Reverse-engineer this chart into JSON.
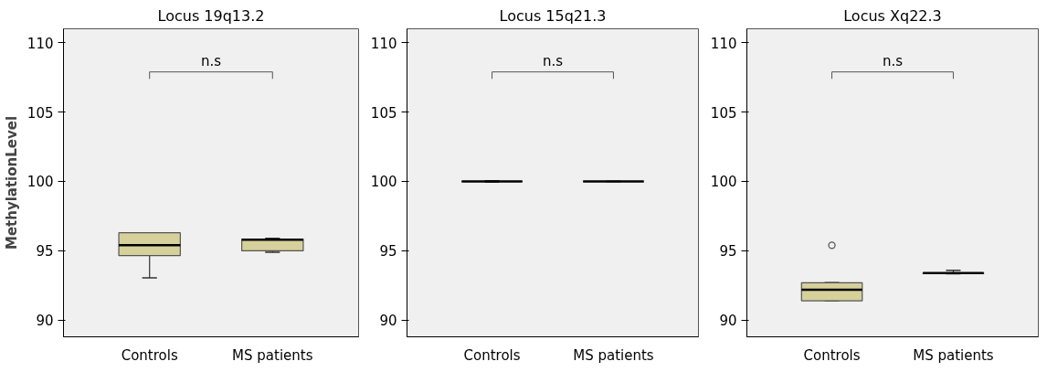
{
  "chart_data": [
    {
      "type": "box",
      "title": "Locus 19q13.2",
      "ylabel": "MethylationLevel",
      "categories": [
        "Controls",
        "MS patients"
      ],
      "color": "#d6d09a",
      "ylim": [
        88.8,
        111
      ],
      "yticks": [
        90,
        95,
        100,
        105,
        110
      ],
      "grid": false,
      "annotations": [
        "n.s"
      ],
      "boxes": [
        {
          "low": 93.05,
          "q1": 94.65,
          "median": 95.4,
          "q3": 96.3,
          "high": 96.3
        },
        {
          "low": 94.9,
          "q1": 95.0,
          "median": 95.8,
          "q3": 95.85,
          "high": 95.9
        }
      ]
    },
    {
      "type": "box",
      "title": "Locus 15q21.3",
      "categories": [
        "Controls",
        "MS patients"
      ],
      "ylim": [
        88.8,
        111
      ],
      "yticks": [
        90,
        95,
        100,
        105,
        110
      ],
      "grid": false,
      "annotations": [
        "n.s"
      ],
      "boxes": [
        {
          "low": 99.95,
          "q1": 100,
          "median": 100,
          "q3": 100,
          "high": 100.05
        },
        {
          "low": 100,
          "q1": 100,
          "median": 100,
          "q3": 100,
          "high": 100
        }
      ]
    },
    {
      "type": "box",
      "title": "Locus Xq22.3",
      "categories": [
        "Controls",
        "MS patients"
      ],
      "color": "#d6d09a",
      "ylim": [
        88.8,
        111
      ],
      "yticks": [
        90,
        95,
        100,
        105,
        110
      ],
      "grid": false,
      "annotations": [
        "n.s"
      ],
      "boxes": [
        {
          "low": 91.4,
          "q1": 91.4,
          "median": 92.2,
          "q3": 92.7,
          "high": 92.7,
          "outliers": [
            95.4
          ]
        },
        {
          "low": 93.35,
          "q1": 93.35,
          "median": 93.4,
          "q3": 93.4,
          "high": 93.6
        }
      ]
    }
  ]
}
